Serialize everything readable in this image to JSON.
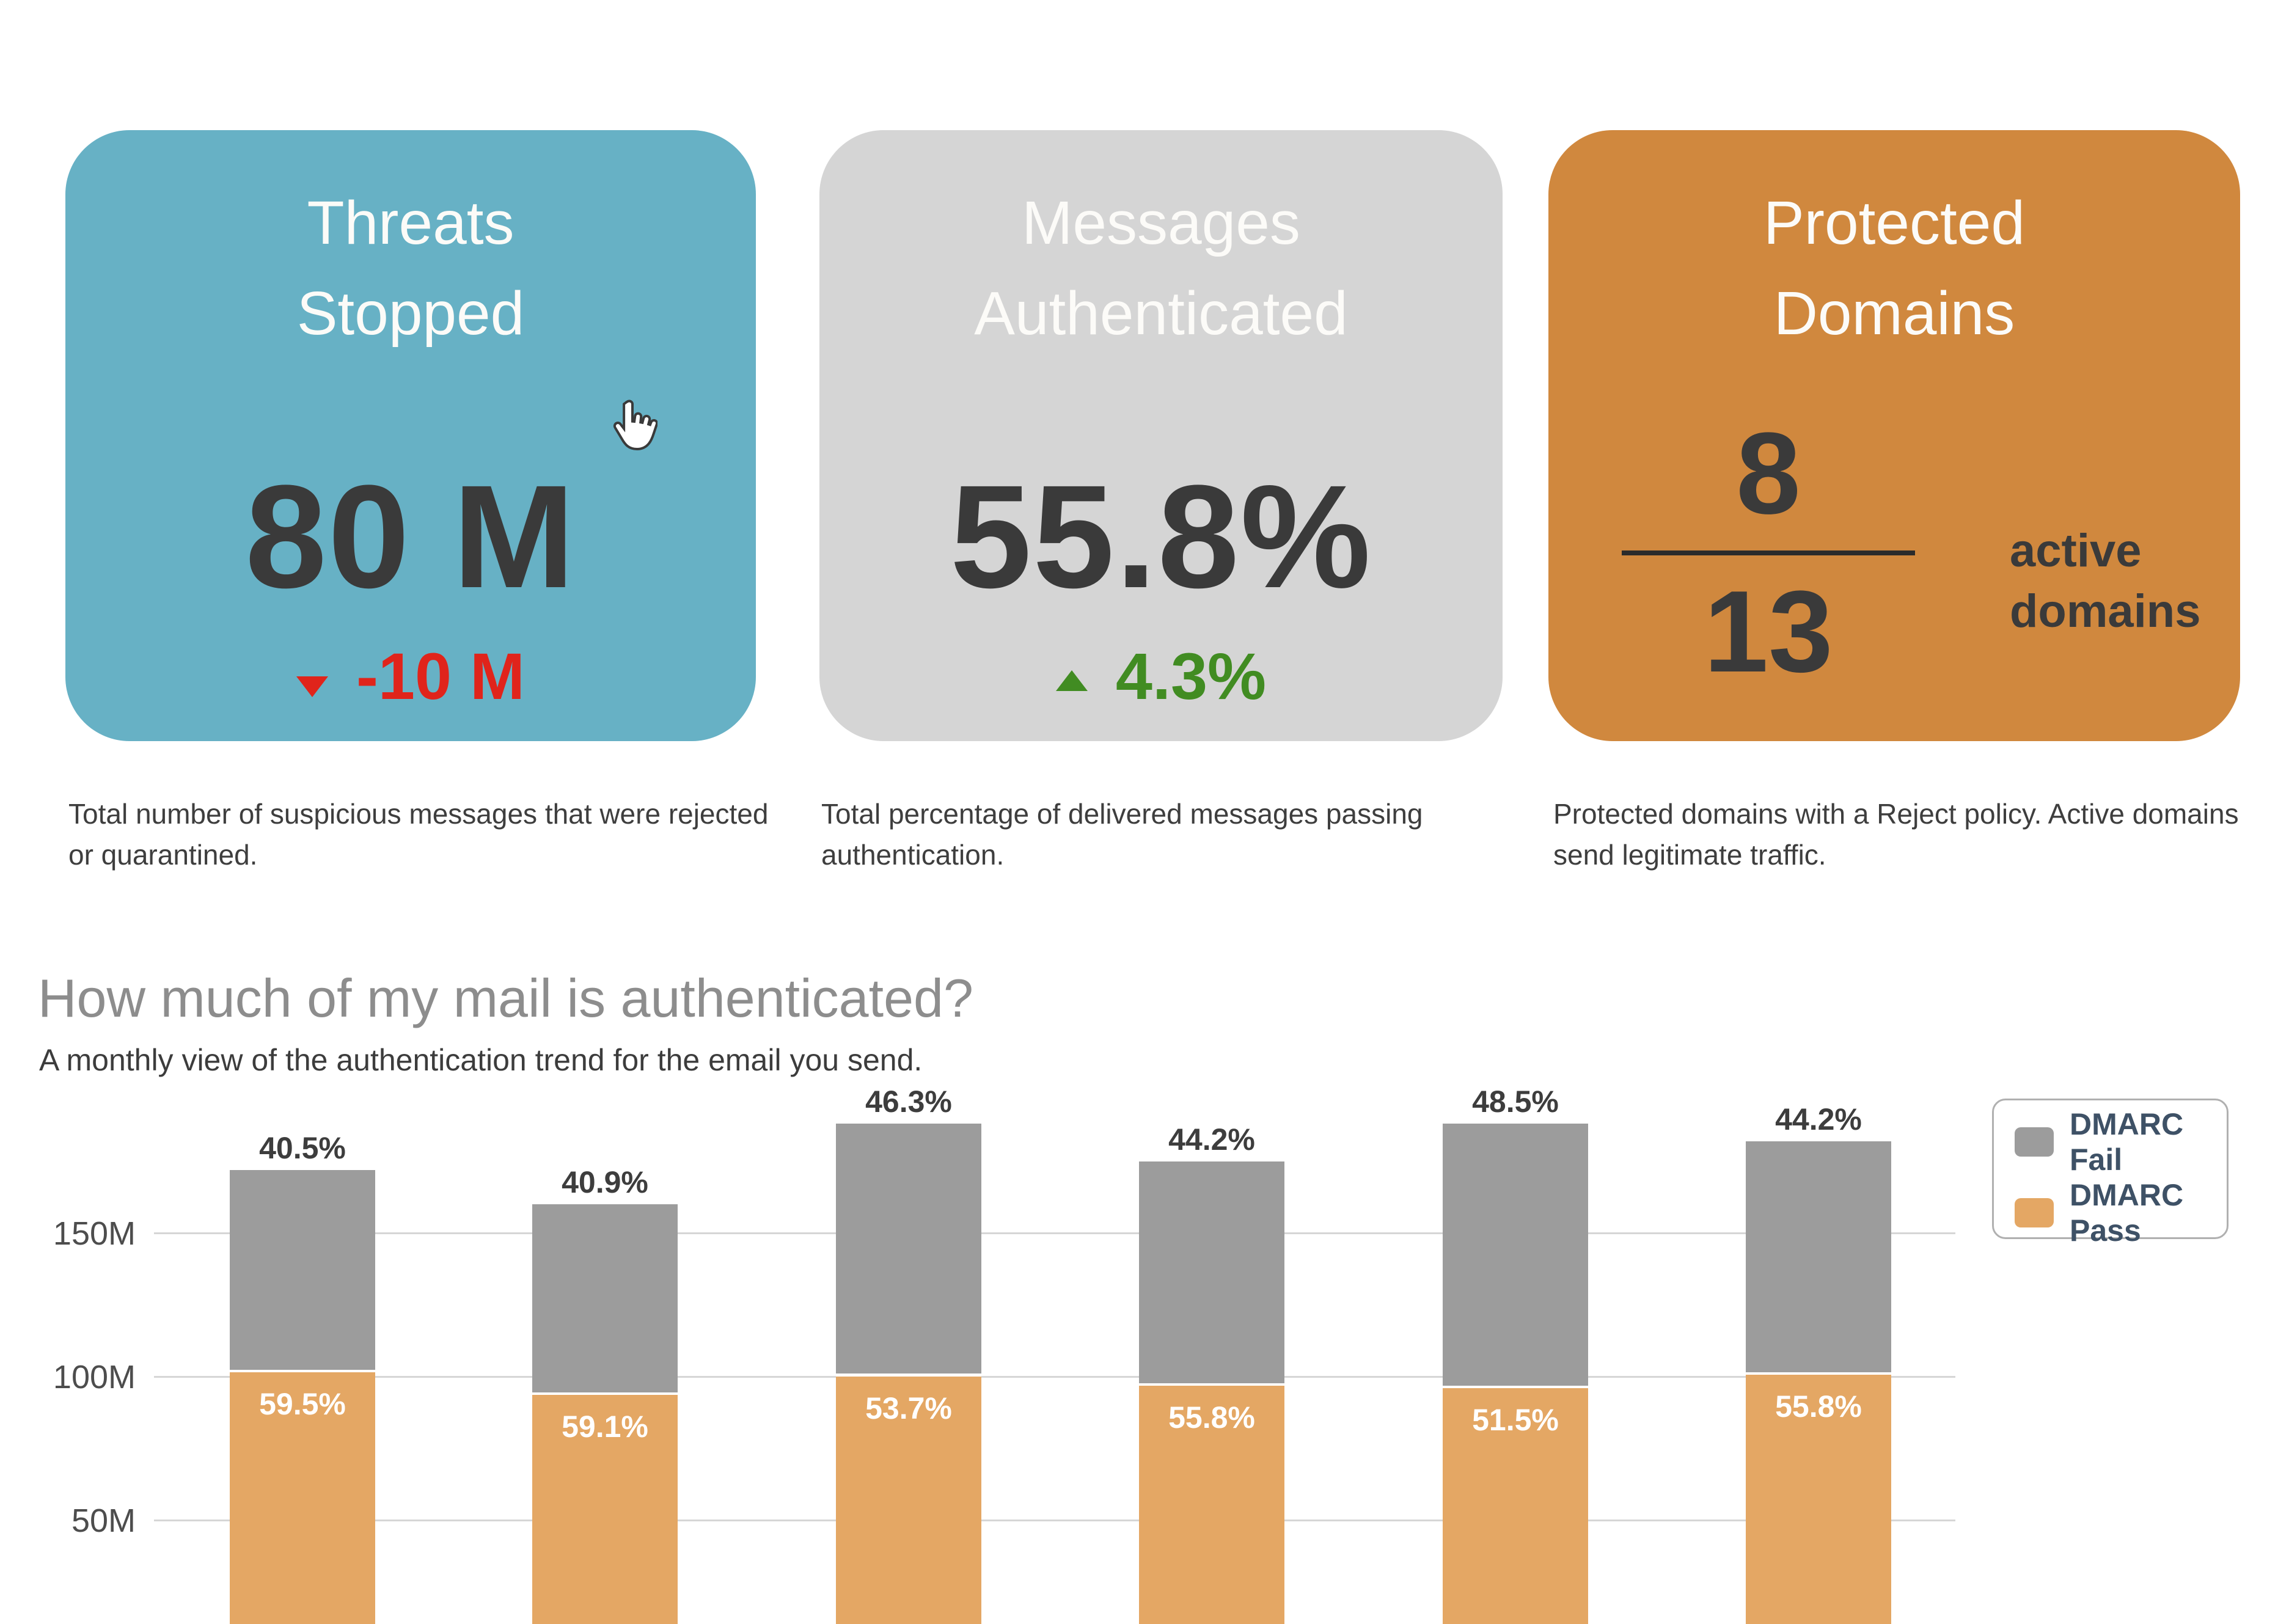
{
  "page": {
    "background": "#ffffff"
  },
  "cards": [
    {
      "title": "Threats Stopped",
      "value": "80 M",
      "delta": "-10 M",
      "delta_direction": "down",
      "description": "Total number of suspicious messages that were rejected or quarantined.",
      "bg": "#67b1c5"
    },
    {
      "title": "Messages Authenticated",
      "value": "55.8%",
      "delta": "4.3%",
      "delta_direction": "up",
      "description": "Total percentage of delivered messages passing authentication.",
      "bg": "#d5d5d5"
    },
    {
      "title": "Protected Domains",
      "numerator": "8",
      "denominator": "13",
      "side_label": "active domains",
      "description": "Protected domains with a Reject policy. Active domains send legitimate traffic.",
      "bg": "#d0883e"
    }
  ],
  "section": {
    "title": "How much of my mail is authenticated?",
    "subtitle": "A monthly view of the authentication trend for the email you send."
  },
  "chart_data": {
    "type": "bar",
    "stacked": true,
    "title": "How much of my mail is authenticated?",
    "xlabel": "",
    "ylabel": "",
    "x_axis_labels_visible": false,
    "categories": [
      "",
      "",
      "",
      "",
      "",
      ""
    ],
    "y_axis": {
      "unit": "M",
      "ticks": [
        {
          "label": "150M",
          "value": 150
        },
        {
          "label": "100M",
          "value": 100
        },
        {
          "label": "50M",
          "value": 50
        }
      ],
      "ylim": [
        0,
        200
      ]
    },
    "series": [
      {
        "name": "DMARC Fail",
        "color": "#9c9c9c",
        "values_M": [
          69.7,
          65.4,
          87.0,
          77.4,
          91.2,
          80.4
        ],
        "percent_labels": [
          "40.5%",
          "40.9%",
          "46.3%",
          "44.2%",
          "48.5%",
          "44.2%"
        ]
      },
      {
        "name": "DMARC Pass",
        "color": "#e4a764",
        "values_M": [
          102.3,
          94.6,
          101.0,
          97.6,
          96.8,
          101.6
        ],
        "percent_labels": [
          "59.5%",
          "59.1%",
          "53.7%",
          "55.8%",
          "51.5%",
          "55.8%"
        ]
      }
    ],
    "totals_M": [
      172,
      160,
      188,
      175,
      188,
      182
    ],
    "bars": [
      {
        "total_M": 172,
        "fail_pct": 40.5,
        "pass_pct": 59.5
      },
      {
        "total_M": 160,
        "fail_pct": 40.9,
        "pass_pct": 59.1
      },
      {
        "total_M": 188,
        "fail_pct": 46.3,
        "pass_pct": 53.7
      },
      {
        "total_M": 175,
        "fail_pct": 44.2,
        "pass_pct": 55.8
      },
      {
        "total_M": 188,
        "fail_pct": 48.5,
        "pass_pct": 51.5
      },
      {
        "total_M": 182,
        "fail_pct": 44.2,
        "pass_pct": 55.8
      }
    ],
    "legend": {
      "position": "top-right",
      "entries": [
        "DMARC Fail",
        "DMARC Pass"
      ]
    },
    "gridlines": true
  },
  "colors": {
    "teal_card": "#67b1c5",
    "gray_card": "#d5d5d5",
    "orange_card": "#d0883e",
    "card_title_text": "#fcfbf8",
    "value_text": "#3a3a3a",
    "delta_down_red": "#e0241b",
    "delta_up_green": "#418c22",
    "bar_fail_gray": "#9c9c9c",
    "bar_pass_orange": "#e4a764",
    "gridline": "#d6d6d6",
    "tick_label": "#4d4d4d",
    "legend_text": "#3e5166",
    "legend_border": "#b0b0b0",
    "section_title": "#8d8d8d"
  }
}
